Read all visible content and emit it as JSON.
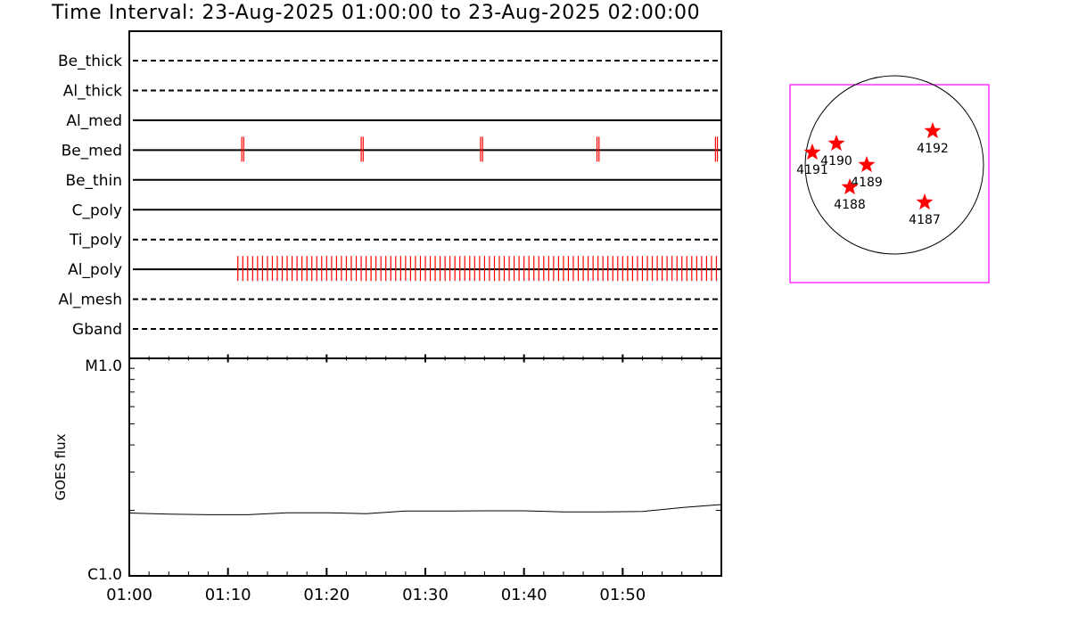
{
  "title": "Time Interval: 23-Aug-2025 01:00:00 to 23-Aug-2025 02:00:00",
  "colors": {
    "observation": "#ff0000",
    "frame": "#ff00ff",
    "axes": "#000000"
  },
  "chart_data": [
    {
      "type": "timeline",
      "rows": [
        {
          "label": "Be_thick",
          "line": "dashed",
          "observations": []
        },
        {
          "label": "Al_thick",
          "line": "dashed",
          "observations": []
        },
        {
          "label": "Al_med",
          "line": "solid",
          "observations": []
        },
        {
          "label": "Be_med",
          "line": "solid",
          "observations": [
            11.4,
            11.6,
            23.5,
            23.7,
            35.6,
            35.8,
            47.4,
            47.6,
            59.4,
            59.6
          ]
        },
        {
          "label": "Be_thin",
          "line": "solid",
          "observations": []
        },
        {
          "label": "C_poly",
          "line": "solid",
          "observations": []
        },
        {
          "label": "Ti_poly",
          "line": "dashed",
          "observations": []
        },
        {
          "label": "Al_poly",
          "line": "solid",
          "observations": {
            "start": 11.0,
            "end": 59.7,
            "step": 0.5
          }
        },
        {
          "label": "Al_mesh",
          "line": "dashed",
          "observations": []
        },
        {
          "label": "Gband",
          "line": "dashed",
          "observations": []
        }
      ],
      "xunit_minutes_from": "01:00"
    },
    {
      "type": "line",
      "ylabel": "GOES flux",
      "ytick_labels": [
        "M1.0",
        "C1.0"
      ],
      "ylim": [
        -6,
        -5
      ],
      "xlim_minutes": [
        0,
        60
      ],
      "xtick_labels": [
        "01:00",
        "01:10",
        "01:20",
        "01:30",
        "01:40",
        "01:50"
      ],
      "series": [
        {
          "x": [
            0,
            4,
            8,
            12,
            16,
            20,
            24,
            28,
            32,
            36,
            40,
            44,
            48,
            52,
            56,
            60
          ],
          "y": [
            -5.711,
            -5.716,
            -5.719,
            -5.719,
            -5.71,
            -5.71,
            -5.714,
            -5.702,
            -5.702,
            -5.701,
            -5.701,
            -5.706,
            -5.706,
            -5.704,
            -5.686,
            -5.672
          ]
        }
      ]
    },
    {
      "type": "scatter",
      "points": [
        {
          "label": "4192",
          "x": 0.43,
          "y": 0.38
        },
        {
          "label": "4190",
          "x": -0.65,
          "y": 0.24
        },
        {
          "label": "4191",
          "x": -0.92,
          "y": 0.14
        },
        {
          "label": "4189",
          "x": -0.31,
          "y": 0.0
        },
        {
          "label": "4188",
          "x": -0.5,
          "y": -0.25
        },
        {
          "label": "4187",
          "x": 0.34,
          "y": -0.42
        }
      ],
      "ylim": [
        -1.1,
        1.3
      ],
      "xlim": [
        -1.15,
        1.07
      ]
    }
  ]
}
